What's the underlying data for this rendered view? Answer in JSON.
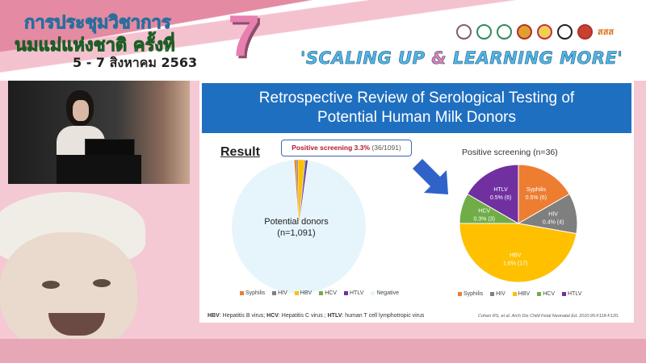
{
  "banner": {
    "thai_line1": "การประชุมวิชาการ",
    "thai_line2": "นมแม่แห่งชาติ ครั้งที่",
    "dates": "5 - 7 สิงหาคม 2563",
    "edition_number": "7",
    "tagline_part1": "'SCALING UP ",
    "tagline_amp": "&",
    "tagline_part2": " LEARNING MORE'",
    "sponsor_logo_text": "สสส"
  },
  "slide": {
    "title_line1": "Retrospective Review of Serological Testing of",
    "title_line2": "Potential Human Milk Donors",
    "result_heading": "Result",
    "callout_bold": "Positive screening 3.3%",
    "callout_rest": " (36/1091)",
    "left_center_line1": "Potential donors",
    "left_center_line2": "(n=1,091)",
    "right_title": "Positive screening (n=36)",
    "footnote_parts": [
      "HBV",
      ": Hepatitis B virus; ",
      "HCV",
      ": Hepatitis C virus ; ",
      "HTLV",
      ": human T cell lymphotropic virus"
    ],
    "citation": "Cohen RS, et al. Arch Dis Child Fetal Neonatal Ed. 2010;95:F118-F120."
  },
  "chart_data": [
    {
      "type": "pie",
      "title": "",
      "categories": [
        "Syphilis",
        "HIV",
        "HBV",
        "HCV",
        "HTLV",
        "Negative"
      ],
      "values": [
        6,
        4,
        17,
        3,
        6,
        1055
      ],
      "colors": [
        "#ed7d31",
        "#7f7f7f",
        "#ffc000",
        "#70ad47",
        "#7030a0",
        "#e6f5fc"
      ],
      "legend": "bottom"
    },
    {
      "type": "pie",
      "title": "Positive screening (n=36)",
      "categories": [
        "Syphilis",
        "HIV",
        "HBV",
        "HCV",
        "HTLV"
      ],
      "values": [
        6,
        4,
        17,
        3,
        6
      ],
      "data_labels": [
        "0.5% (6)",
        "0.4% (4)",
        "1.6% (17)",
        "0.3% (3)",
        "0.5% (6)"
      ],
      "colors": [
        "#ed7d31",
        "#7f7f7f",
        "#ffc000",
        "#70ad47",
        "#7030a0"
      ],
      "legend": "bottom"
    }
  ]
}
